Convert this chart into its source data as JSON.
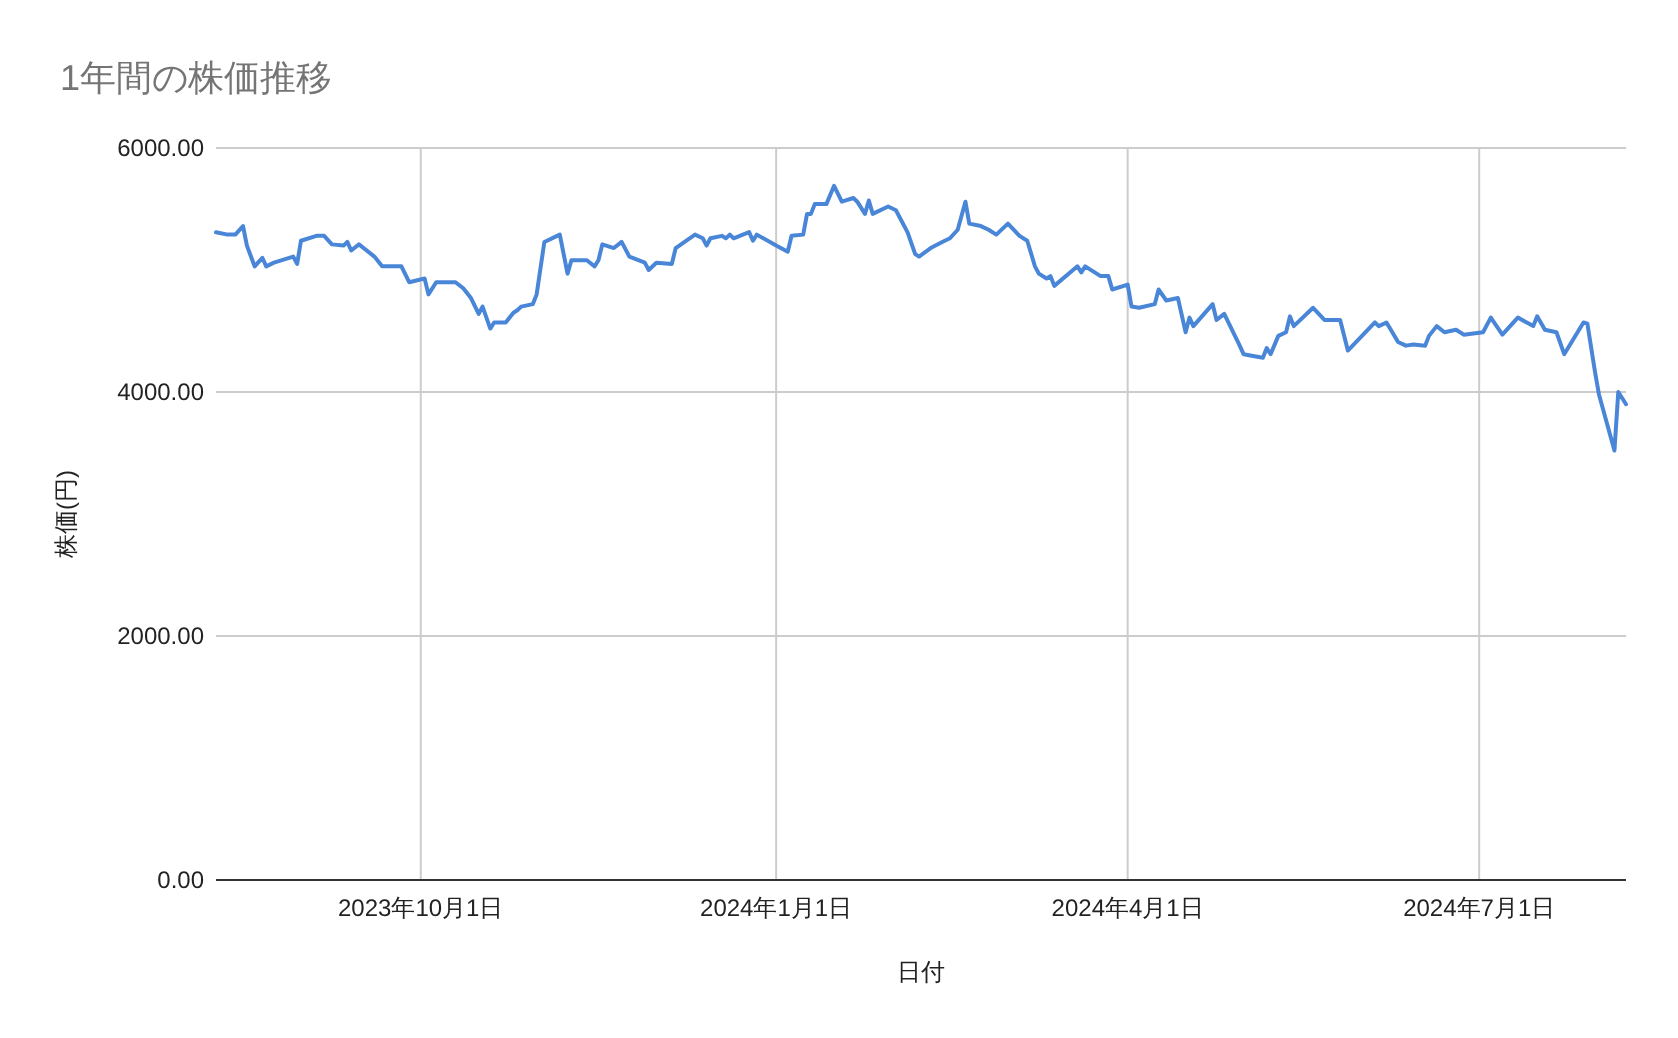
{
  "chart_data": {
    "type": "line",
    "title": "1年間の株価推移",
    "xlabel": "日付",
    "ylabel": "株価(円)",
    "xlim": [
      "2023-08-09",
      "2024-08-08"
    ],
    "xticks": [
      {
        "value": "2023-10-01",
        "label": "2023年10月1日"
      },
      {
        "value": "2024-01-01",
        "label": "2024年1月1日"
      },
      {
        "value": "2024-04-01",
        "label": "2024年4月1日"
      },
      {
        "value": "2024-07-01",
        "label": "2024年7月1日"
      }
    ],
    "ylim": [
      0,
      6000
    ],
    "yticks": [
      {
        "value": 0,
        "label": "0.00"
      },
      {
        "value": 2000,
        "label": "2000.00"
      },
      {
        "value": 4000,
        "label": "4000.00"
      },
      {
        "value": 6000,
        "label": "6000.00"
      }
    ],
    "grid": true,
    "x": [
      "2023-08-09",
      "2023-08-12",
      "2023-08-14",
      "2023-08-16",
      "2023-08-17",
      "2023-08-19",
      "2023-08-21",
      "2023-08-22",
      "2023-08-24",
      "2023-08-29",
      "2023-08-30",
      "2023-08-31",
      "2023-09-04",
      "2023-09-06",
      "2023-09-08",
      "2023-09-11",
      "2023-09-12",
      "2023-09-13",
      "2023-09-15",
      "2023-09-19",
      "2023-09-21",
      "2023-09-24",
      "2023-09-26",
      "2023-09-28",
      "2023-10-02",
      "2023-10-03",
      "2023-10-05",
      "2023-10-10",
      "2023-10-12",
      "2023-10-14",
      "2023-10-16",
      "2023-10-17",
      "2023-10-18",
      "2023-10-19",
      "2023-10-20",
      "2023-10-23",
      "2023-10-25",
      "2023-10-26",
      "2023-10-27",
      "2023-10-30",
      "2023-10-31",
      "2023-11-02",
      "2023-11-06",
      "2023-11-08",
      "2023-11-09",
      "2023-11-13",
      "2023-11-15",
      "2023-11-16",
      "2023-11-17",
      "2023-11-20",
      "2023-11-22",
      "2023-11-24",
      "2023-11-28",
      "2023-11-29",
      "2023-12-01",
      "2023-12-05",
      "2023-12-06",
      "2023-12-11",
      "2023-12-13",
      "2023-12-14",
      "2023-12-15",
      "2023-12-18",
      "2023-12-19",
      "2023-12-20",
      "2023-12-21",
      "2023-12-25",
      "2023-12-26",
      "2023-12-27",
      "2024-01-01",
      "2024-01-04",
      "2024-01-05",
      "2024-01-08",
      "2024-01-09",
      "2024-01-10",
      "2024-01-11",
      "2024-01-14",
      "2024-01-16",
      "2024-01-18",
      "2024-01-21",
      "2024-01-22",
      "2024-01-24",
      "2024-01-25",
      "2024-01-26",
      "2024-01-30",
      "2024-02-01",
      "2024-02-04",
      "2024-02-06",
      "2024-02-07",
      "2024-02-10",
      "2024-02-13",
      "2024-02-15",
      "2024-02-17",
      "2024-02-19",
      "2024-02-20",
      "2024-02-23",
      "2024-02-25",
      "2024-02-27",
      "2024-03-01",
      "2024-03-04",
      "2024-03-06",
      "2024-03-08",
      "2024-03-09",
      "2024-03-11",
      "2024-03-12",
      "2024-03-13",
      "2024-03-19",
      "2024-03-20",
      "2024-03-21",
      "2024-03-25",
      "2024-03-27",
      "2024-03-28",
      "2024-04-01",
      "2024-04-02",
      "2024-04-04",
      "2024-04-08",
      "2024-04-09",
      "2024-04-11",
      "2024-04-14",
      "2024-04-16",
      "2024-04-17",
      "2024-04-18",
      "2024-04-23",
      "2024-04-24",
      "2024-04-26",
      "2024-04-30",
      "2024-05-01",
      "2024-05-06",
      "2024-05-07",
      "2024-05-08",
      "2024-05-10",
      "2024-05-12",
      "2024-05-13",
      "2024-05-14",
      "2024-05-19",
      "2024-05-22",
      "2024-05-26",
      "2024-05-28",
      "2024-06-04",
      "2024-06-05",
      "2024-06-07",
      "2024-06-10",
      "2024-06-12",
      "2024-06-14",
      "2024-06-17",
      "2024-06-18",
      "2024-06-20",
      "2024-06-22",
      "2024-06-25",
      "2024-06-27",
      "2024-07-02",
      "2024-07-04",
      "2024-07-07",
      "2024-07-11",
      "2024-07-15",
      "2024-07-16",
      "2024-07-18",
      "2024-07-21",
      "2024-07-23",
      "2024-07-28",
      "2024-07-29",
      "2024-07-31",
      "2024-08-01",
      "2024-08-05",
      "2024-08-06",
      "2024-08-08"
    ],
    "series": [
      {
        "color": "#4a86d8",
        "values": [
          5310,
          5290,
          5290,
          5360,
          5200,
          5030,
          5100,
          5030,
          5060,
          5110,
          5050,
          5240,
          5280,
          5280,
          5210,
          5200,
          5230,
          5160,
          5210,
          5110,
          5030,
          5030,
          5030,
          4900,
          4930,
          4800,
          4900,
          4900,
          4850,
          4770,
          4640,
          4700,
          4610,
          4520,
          4570,
          4570,
          4650,
          4670,
          4700,
          4720,
          4800,
          5230,
          5290,
          4970,
          5080,
          5080,
          5030,
          5080,
          5210,
          5180,
          5230,
          5110,
          5060,
          5000,
          5060,
          5050,
          5180,
          5290,
          5260,
          5200,
          5260,
          5280,
          5260,
          5290,
          5260,
          5310,
          5240,
          5290,
          5200,
          5150,
          5280,
          5290,
          5460,
          5460,
          5540,
          5540,
          5690,
          5560,
          5590,
          5560,
          5460,
          5570,
          5460,
          5520,
          5490,
          5310,
          5130,
          5110,
          5180,
          5230,
          5260,
          5330,
          5560,
          5380,
          5360,
          5330,
          5290,
          5380,
          5280,
          5240,
          5030,
          4970,
          4930,
          4950,
          4870,
          5030,
          4980,
          5030,
          4950,
          4950,
          4840,
          4880,
          4700,
          4690,
          4720,
          4840,
          4750,
          4770,
          4490,
          4610,
          4540,
          4720,
          4590,
          4640,
          4380,
          4310,
          4280,
          4360,
          4310,
          4460,
          4490,
          4620,
          4540,
          4690,
          4590,
          4590,
          4340,
          4570,
          4540,
          4570,
          4410,
          4380,
          4390,
          4380,
          4460,
          4540,
          4490,
          4510,
          4470,
          4490,
          4610,
          4470,
          4610,
          4540,
          4620,
          4510,
          4490,
          4310,
          4570,
          4560,
          4160,
          3980,
          3520,
          4000,
          3900
        ]
      }
    ]
  }
}
